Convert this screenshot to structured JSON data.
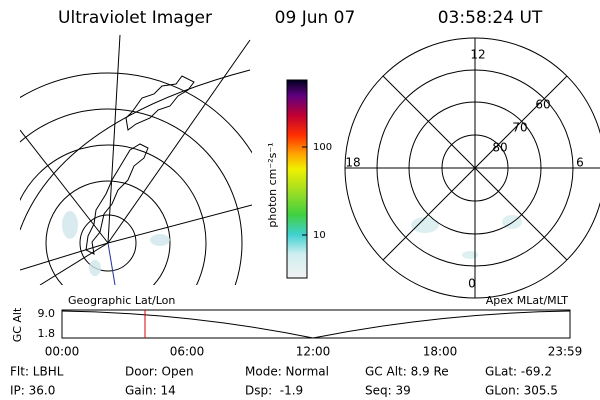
{
  "header": {
    "title": "Ultraviolet Imager",
    "date": "09 Jun 07",
    "time": "03:58:24 UT"
  },
  "colorbar": {
    "label": "photon cm⁻²s⁻¹",
    "ticks": [
      "100",
      "10"
    ]
  },
  "geo_map": {
    "label": "Geographic Lat/Lon"
  },
  "polar_map": {
    "label": "Apex MLat/MLT",
    "mlt_labels": [
      "12",
      "18",
      "6",
      "0"
    ],
    "lat_labels": [
      "60",
      "70",
      "80"
    ]
  },
  "altitude_plot": {
    "ylabel": "GC Alt",
    "yticks": [
      "9.0",
      "1.8"
    ],
    "xticks": [
      "00:00",
      "06:00",
      "12:00",
      "18:00",
      "23:59"
    ]
  },
  "footer": {
    "rows": [
      [
        "Flt: LBHL",
        "Door: Open",
        "Mode: Normal",
        "GC Alt: 8.9 Re",
        "GLat: -69.2"
      ],
      [
        "IP: 36.0",
        "Gain: 14",
        "Dsp:  -1.9",
        "Seq: 39",
        "GLon: 305.5"
      ]
    ]
  }
}
